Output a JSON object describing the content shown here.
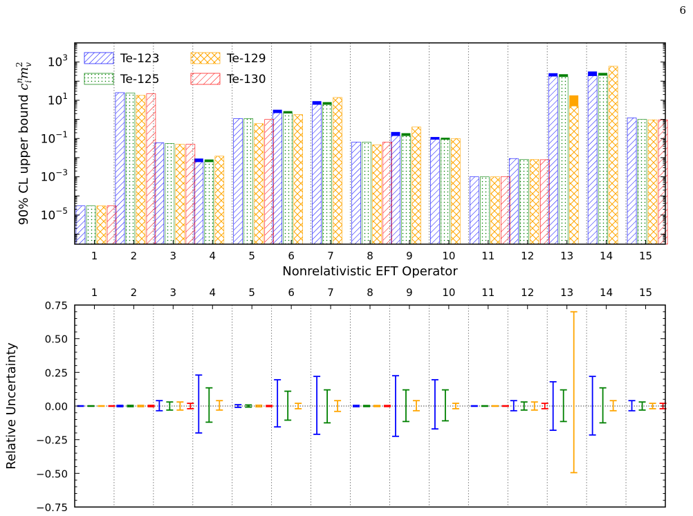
{
  "page_number": "6",
  "colors": {
    "Te-123": "#0000ff",
    "Te-125": "#008000",
    "Te-129": "#ffa500",
    "Te-130": "#ff0000"
  },
  "chart_data": [
    {
      "type": "bar",
      "panel": "upper-bounds",
      "ylabel": "90% CL upper bound",
      "ylabel_math": "c_i^n m_v^2",
      "xlabel": "Nonrelativistic EFT Operator",
      "y_scale": "log",
      "ylim": [
        3e-07,
        10000.0
      ],
      "yticks": [
        "10^{-5}",
        "10^{-3}",
        "10^{-1}",
        "10^{1}",
        "10^{3}"
      ],
      "grid": "vertical dotted separators",
      "legend": "top-left, 2 columns",
      "categories": [
        "1",
        "2",
        "3",
        "4",
        "5",
        "6",
        "7",
        "8",
        "9",
        "10",
        "11",
        "12",
        "13",
        "14",
        "15"
      ],
      "series": [
        {
          "name": "Te-123",
          "hatch": "diagonal",
          "values": [
            3e-05,
            25,
            0.06,
            0.006,
            1.1,
            2.2,
            6,
            0.065,
            0.14,
            0.09,
            0.001,
            0.009,
            180,
            190,
            1.2
          ],
          "uncert_top": [
            3e-05,
            26,
            0.062,
            0.009,
            1.1,
            3.2,
            9,
            0.066,
            0.22,
            0.12,
            0.001,
            0.0093,
            260,
            320,
            1.25
          ]
        },
        {
          "name": "Te-125",
          "hatch": "dots",
          "values": [
            3e-05,
            24,
            0.055,
            0.006,
            1.1,
            2.1,
            6,
            0.065,
            0.14,
            0.09,
            0.001,
            0.008,
            170,
            200,
            1.0
          ],
          "uncert_top": [
            3e-05,
            25,
            0.056,
            0.008,
            1.1,
            2.7,
            8,
            0.066,
            0.19,
            0.11,
            0.001,
            0.0082,
            230,
            270,
            1.02
          ]
        },
        {
          "name": "Te-129",
          "hatch": "crosshatch",
          "values": [
            3e-05,
            18,
            0.05,
            0.012,
            0.6,
            1.8,
            14,
            0.047,
            0.4,
            0.1,
            0.001,
            0.008,
            5,
            600,
            0.95
          ],
          "uncert_top": [
            3e-05,
            18,
            0.05,
            0.012,
            0.6,
            1.8,
            14,
            0.047,
            0.4,
            0.1,
            0.001,
            0.008,
            18,
            600,
            0.95
          ]
        },
        {
          "name": "Te-130",
          "hatch": "diagonal",
          "values": [
            3e-05,
            22,
            0.05,
            null,
            1.0,
            null,
            null,
            0.065,
            null,
            null,
            0.001,
            0.0078,
            null,
            null,
            0.95
          ],
          "uncert_top": [
            3e-05,
            22,
            0.05,
            null,
            1.0,
            null,
            null,
            0.065,
            null,
            null,
            0.001,
            0.0078,
            null,
            null,
            0.95
          ]
        }
      ]
    },
    {
      "type": "errorbar",
      "panel": "relative-uncertainty",
      "ylabel": "Relative Uncertainty",
      "ylim": [
        -0.75,
        0.75
      ],
      "yticks": [
        "0.75",
        "0.50",
        "0.25",
        "0.00",
        "−0.25",
        "−0.50",
        "−0.75"
      ],
      "yticks_values": [
        0.75,
        0.5,
        0.25,
        0,
        -0.25,
        -0.5,
        -0.75
      ],
      "categories": [
        "1",
        "2",
        "3",
        "4",
        "5",
        "6",
        "7",
        "8",
        "9",
        "10",
        "11",
        "12",
        "13",
        "14",
        "15"
      ],
      "series": [
        {
          "name": "Te-123",
          "upper": [
            0.002,
            0.005,
            0.04,
            0.23,
            0.01,
            0.195,
            0.22,
            0.005,
            0.225,
            0.195,
            0.002,
            0.04,
            0.18,
            0.22,
            0.04
          ],
          "lower": [
            -0.002,
            -0.005,
            -0.035,
            -0.2,
            -0.01,
            -0.155,
            -0.21,
            -0.005,
            -0.225,
            -0.17,
            -0.002,
            -0.035,
            -0.18,
            -0.215,
            -0.035
          ]
        },
        {
          "name": "Te-125",
          "upper": [
            0.002,
            0.005,
            0.03,
            0.135,
            0.008,
            0.11,
            0.12,
            0.004,
            0.12,
            0.12,
            0.002,
            0.03,
            0.12,
            0.135,
            0.03
          ],
          "lower": [
            -0.002,
            -0.005,
            -0.03,
            -0.12,
            -0.008,
            -0.105,
            -0.125,
            -0.004,
            -0.115,
            -0.11,
            -0.002,
            -0.03,
            -0.115,
            -0.125,
            -0.03
          ]
        },
        {
          "name": "Te-129",
          "upper": [
            0.002,
            0.005,
            0.03,
            0.04,
            0.006,
            0.02,
            0.04,
            0.004,
            0.04,
            0.02,
            0.002,
            0.03,
            0.7,
            0.04,
            0.02
          ],
          "lower": [
            -0.002,
            -0.005,
            -0.03,
            -0.03,
            -0.006,
            -0.02,
            -0.04,
            -0.004,
            -0.035,
            -0.02,
            -0.002,
            -0.03,
            -0.495,
            -0.035,
            -0.02
          ]
        },
        {
          "name": "Te-130",
          "upper": [
            0.002,
            0.005,
            0.02,
            null,
            0.004,
            null,
            null,
            0.004,
            null,
            null,
            0.002,
            0.02,
            null,
            null,
            0.02
          ],
          "lower": [
            -0.002,
            -0.005,
            -0.02,
            null,
            -0.004,
            null,
            null,
            -0.004,
            null,
            null,
            -0.002,
            -0.02,
            null,
            null,
            -0.02
          ]
        }
      ]
    }
  ]
}
